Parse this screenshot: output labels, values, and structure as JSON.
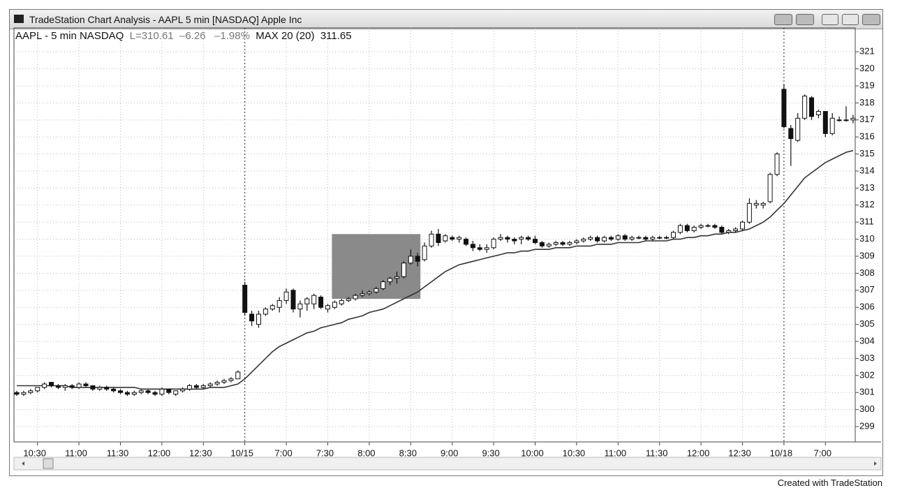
{
  "window": {
    "title": "TradeStation Chart Analysis - AAPL 5 min [NASDAQ] Apple Inc"
  },
  "header": {
    "symbol": "AAPL - 5 min NASDAQ",
    "last": "L=310.61",
    "change": "–6.26",
    "change_pct": "–1.98%",
    "indicator": "MAX 20 (20)",
    "indicator_value": "311.65"
  },
  "footer": "Created with TradeStation",
  "chart_data": {
    "type": "candlestick",
    "categories": [
      null,
      null,
      null,
      "10:30",
      null,
      null,
      null,
      null,
      null,
      "11:00",
      null,
      null,
      null,
      null,
      null,
      "11:30",
      null,
      null,
      null,
      null,
      null,
      "12:00",
      null,
      null,
      null,
      null,
      null,
      "12:30",
      null,
      null,
      null,
      null,
      null,
      "10/15",
      null,
      null,
      null,
      null,
      null,
      "7:00",
      null,
      null,
      null,
      null,
      null,
      "7:30",
      null,
      null,
      null,
      null,
      null,
      "8:00",
      null,
      null,
      null,
      null,
      null,
      "8:30",
      null,
      null,
      null,
      null,
      null,
      "9:00",
      null,
      null,
      null,
      null,
      null,
      "9:30",
      null,
      null,
      null,
      null,
      null,
      "10:00",
      null,
      null,
      null,
      null,
      null,
      "10:30",
      null,
      null,
      null,
      null,
      null,
      "11:00",
      null,
      null,
      null,
      null,
      null,
      "11:30",
      null,
      null,
      null,
      null,
      null,
      "12:00",
      null,
      null,
      null,
      null,
      null,
      "12:30",
      null,
      null,
      null,
      null,
      null,
      "10/18",
      null,
      null,
      null,
      null,
      null,
      "7:00",
      null,
      null,
      null,
      null
    ],
    "open": [
      301.0,
      300.9,
      301.0,
      301.1,
      301.3,
      301.6,
      301.4,
      301.3,
      301.4,
      301.3,
      301.5,
      301.4,
      301.2,
      301.3,
      301.2,
      301.1,
      301.0,
      300.9,
      301.0,
      301.1,
      301.0,
      300.9,
      301.2,
      300.9,
      301.1,
      301.2,
      301.4,
      301.3,
      301.4,
      301.5,
      301.6,
      301.7,
      301.8,
      307.3,
      305.6,
      305.0,
      305.6,
      305.9,
      306.0,
      306.4,
      307.0,
      305.9,
      306.2,
      306.2,
      306.6,
      305.9,
      306.0,
      306.2,
      306.4,
      306.5,
      306.7,
      306.8,
      306.9,
      307.1,
      307.5,
      307.7,
      307.8,
      308.6,
      309.0,
      308.8,
      309.6,
      310.3,
      309.9,
      310.1,
      310.0,
      310.0,
      309.7,
      309.5,
      309.4,
      309.5,
      310.0,
      310.1,
      310.0,
      310.0,
      310.1,
      310.0,
      309.8,
      309.6,
      309.7,
      309.8,
      309.7,
      309.8,
      309.9,
      310.0,
      310.1,
      309.9,
      310.1,
      310.0,
      310.2,
      310.0,
      310.1,
      310.1,
      310.0,
      310.1,
      310.1,
      310.1,
      310.4,
      310.8,
      310.5,
      310.7,
      310.8,
      310.8,
      310.7,
      310.4,
      310.5,
      310.6,
      311.0,
      312.0,
      312.0,
      312.2,
      313.8,
      318.8,
      316.5,
      315.8,
      317.1,
      318.3,
      317.3,
      317.5,
      316.2,
      317.0,
      317.0,
      317.0
    ],
    "high": [
      301.1,
      301.1,
      301.2,
      301.3,
      301.6,
      301.6,
      301.5,
      301.5,
      301.5,
      301.6,
      301.6,
      301.4,
      301.4,
      301.4,
      301.3,
      301.2,
      301.1,
      301.1,
      301.2,
      301.2,
      301.1,
      301.3,
      301.2,
      301.1,
      301.3,
      301.5,
      301.5,
      301.5,
      301.6,
      301.7,
      301.8,
      301.9,
      302.3,
      307.5,
      305.8,
      305.8,
      306.0,
      306.2,
      306.6,
      307.1,
      307.1,
      306.4,
      306.6,
      306.8,
      306.7,
      306.2,
      306.4,
      306.5,
      306.6,
      306.8,
      307.0,
      307.0,
      307.2,
      307.6,
      307.8,
      308.1,
      308.7,
      309.4,
      309.2,
      309.8,
      310.5,
      310.6,
      310.3,
      310.2,
      310.2,
      310.1,
      309.9,
      309.7,
      309.7,
      310.1,
      310.3,
      310.2,
      310.1,
      310.2,
      310.2,
      310.2,
      309.9,
      309.8,
      309.9,
      309.9,
      309.9,
      310.0,
      310.1,
      310.2,
      310.2,
      310.2,
      310.2,
      310.3,
      310.3,
      310.2,
      310.2,
      310.2,
      310.2,
      310.2,
      310.2,
      310.5,
      310.9,
      310.9,
      310.8,
      310.9,
      310.9,
      310.9,
      310.8,
      310.6,
      310.7,
      311.1,
      312.4,
      312.3,
      312.2,
      313.9,
      315.1,
      319.1,
      316.7,
      317.4,
      318.5,
      318.4,
      317.6,
      317.5,
      317.4,
      317.2,
      317.8,
      317.3
    ],
    "low": [
      300.8,
      300.8,
      300.9,
      301.0,
      301.2,
      301.3,
      301.2,
      301.1,
      301.2,
      301.2,
      301.3,
      301.1,
      301.1,
      301.1,
      301.0,
      300.9,
      300.8,
      300.8,
      300.9,
      300.9,
      300.8,
      300.8,
      300.9,
      300.8,
      301.0,
      301.1,
      301.2,
      301.2,
      301.3,
      301.4,
      301.5,
      301.6,
      301.8,
      305.5,
      304.9,
      304.8,
      305.5,
      305.8,
      305.7,
      306.2,
      305.7,
      305.4,
      305.8,
      305.9,
      305.9,
      305.7,
      305.9,
      306.1,
      306.3,
      306.4,
      306.6,
      306.7,
      306.8,
      307.0,
      307.3,
      307.4,
      307.7,
      308.5,
      308.4,
      308.7,
      309.5,
      309.6,
      309.8,
      309.9,
      309.8,
      309.6,
      309.3,
      309.3,
      309.2,
      309.4,
      309.9,
      309.8,
      309.7,
      309.7,
      309.9,
      309.7,
      309.5,
      309.5,
      309.6,
      309.6,
      309.6,
      309.7,
      309.8,
      309.9,
      309.8,
      309.8,
      309.9,
      309.9,
      309.9,
      309.9,
      310.0,
      309.9,
      309.9,
      310.0,
      310.0,
      310.0,
      310.3,
      310.4,
      310.4,
      310.6,
      310.7,
      310.6,
      310.3,
      310.3,
      310.4,
      310.5,
      310.9,
      311.8,
      311.8,
      312.1,
      313.7,
      316.5,
      314.3,
      315.7,
      317.0,
      317.0,
      317.1,
      316.0,
      316.1,
      316.9,
      316.9,
      316.8
    ],
    "close": [
      300.9,
      301.0,
      301.1,
      301.3,
      301.5,
      301.4,
      301.3,
      301.4,
      301.3,
      301.5,
      301.4,
      301.2,
      301.3,
      301.2,
      301.1,
      301.0,
      300.9,
      301.0,
      301.1,
      301.0,
      300.9,
      301.2,
      301.0,
      301.1,
      301.2,
      301.4,
      301.3,
      301.4,
      301.5,
      301.6,
      301.7,
      301.8,
      302.2,
      305.7,
      305.2,
      305.6,
      305.9,
      306.1,
      306.4,
      306.9,
      305.9,
      306.2,
      306.5,
      306.7,
      306.0,
      306.1,
      306.3,
      306.4,
      306.5,
      306.7,
      306.8,
      306.9,
      307.1,
      307.5,
      307.7,
      307.8,
      308.6,
      309.0,
      308.7,
      309.6,
      310.3,
      309.8,
      310.2,
      310.0,
      310.1,
      309.7,
      309.5,
      309.4,
      309.5,
      310.0,
      310.1,
      310.0,
      309.9,
      310.1,
      310.0,
      309.8,
      309.6,
      309.7,
      309.8,
      309.7,
      309.8,
      309.9,
      310.0,
      310.1,
      309.9,
      310.1,
      310.0,
      310.2,
      310.0,
      310.1,
      310.1,
      310.0,
      310.1,
      310.1,
      310.1,
      310.4,
      310.8,
      310.5,
      310.7,
      310.8,
      310.8,
      310.7,
      310.4,
      310.5,
      310.6,
      311.0,
      312.1,
      312.1,
      312.1,
      313.8,
      315.0,
      316.6,
      315.9,
      317.1,
      318.4,
      317.2,
      317.5,
      316.2,
      317.1,
      317.0,
      317.0,
      317.1
    ],
    "moving_average": {
      "color": "#333333",
      "values": [
        301.4,
        301.4,
        301.4,
        301.4,
        301.4,
        301.4,
        301.4,
        301.4,
        301.3,
        301.3,
        301.3,
        301.3,
        301.3,
        301.3,
        301.3,
        301.3,
        301.3,
        301.3,
        301.2,
        301.2,
        301.2,
        301.2,
        301.2,
        301.2,
        301.2,
        301.2,
        301.2,
        301.2,
        301.3,
        301.3,
        301.3,
        301.4,
        301.5,
        301.8,
        302.2,
        302.6,
        303.0,
        303.4,
        303.7,
        303.9,
        304.1,
        304.3,
        304.5,
        304.6,
        304.8,
        304.9,
        305.0,
        305.1,
        305.3,
        305.4,
        305.5,
        305.7,
        305.8,
        305.9,
        306.1,
        306.3,
        306.5,
        306.7,
        306.9,
        307.2,
        307.5,
        307.8,
        308.1,
        308.3,
        308.5,
        308.6,
        308.7,
        308.8,
        308.9,
        309.0,
        309.1,
        309.2,
        309.2,
        309.3,
        309.3,
        309.4,
        309.4,
        309.4,
        309.5,
        309.5,
        309.5,
        309.6,
        309.6,
        309.6,
        309.7,
        309.7,
        309.7,
        309.8,
        309.8,
        309.8,
        309.8,
        309.9,
        309.9,
        309.9,
        309.9,
        310.0,
        310.0,
        310.1,
        310.1,
        310.2,
        310.2,
        310.3,
        310.3,
        310.4,
        310.4,
        310.5,
        310.6,
        310.8,
        311.0,
        311.3,
        311.7,
        312.1,
        312.6,
        313.1,
        313.6,
        313.9,
        314.2,
        314.5,
        314.7,
        314.9,
        315.1,
        315.2
      ]
    },
    "highlight": {
      "from": 46,
      "to": 58,
      "low": 306.5,
      "high": 310.3,
      "color": "#8a8a8a"
    },
    "up_color": "#ffffff",
    "down_color": "#111111",
    "ylim": [
      298.1,
      322.4
    ],
    "yticks": [
      299,
      300,
      301,
      302,
      303,
      304,
      305,
      306,
      307,
      308,
      309,
      310,
      311,
      312,
      313,
      314,
      315,
      316,
      317,
      318,
      319,
      320,
      321
    ],
    "grid": true
  }
}
